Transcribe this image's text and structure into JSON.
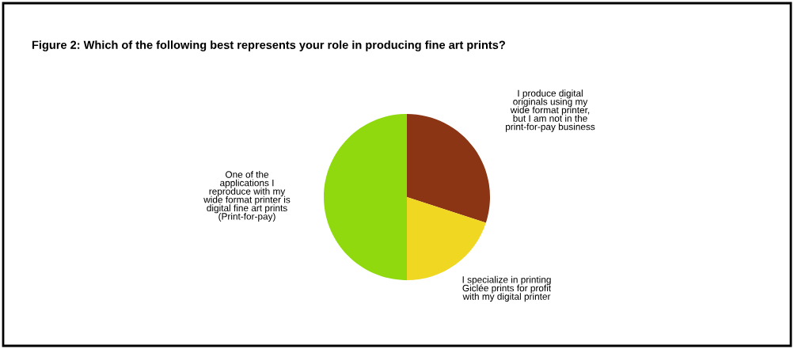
{
  "chart_data": {
    "type": "pie",
    "title": "Figure 2: Which of the following best represents your role in producing fine art prints?",
    "categories": [
      "I produce digital\noriginals using my\nwide format printer,\nbut I am not in the\nprint-for-pay business",
      "I specialize in printing\nGiclée prints for profit\nwith my digital printer",
      "One of the\napplications I\nreproduce with my\nwide format printer is\ndigital fine art prints\n(Print-for-pay)"
    ],
    "values": [
      30,
      20,
      50
    ],
    "colors": [
      "#8b3514",
      "#f0d822",
      "#90d90e"
    ]
  }
}
